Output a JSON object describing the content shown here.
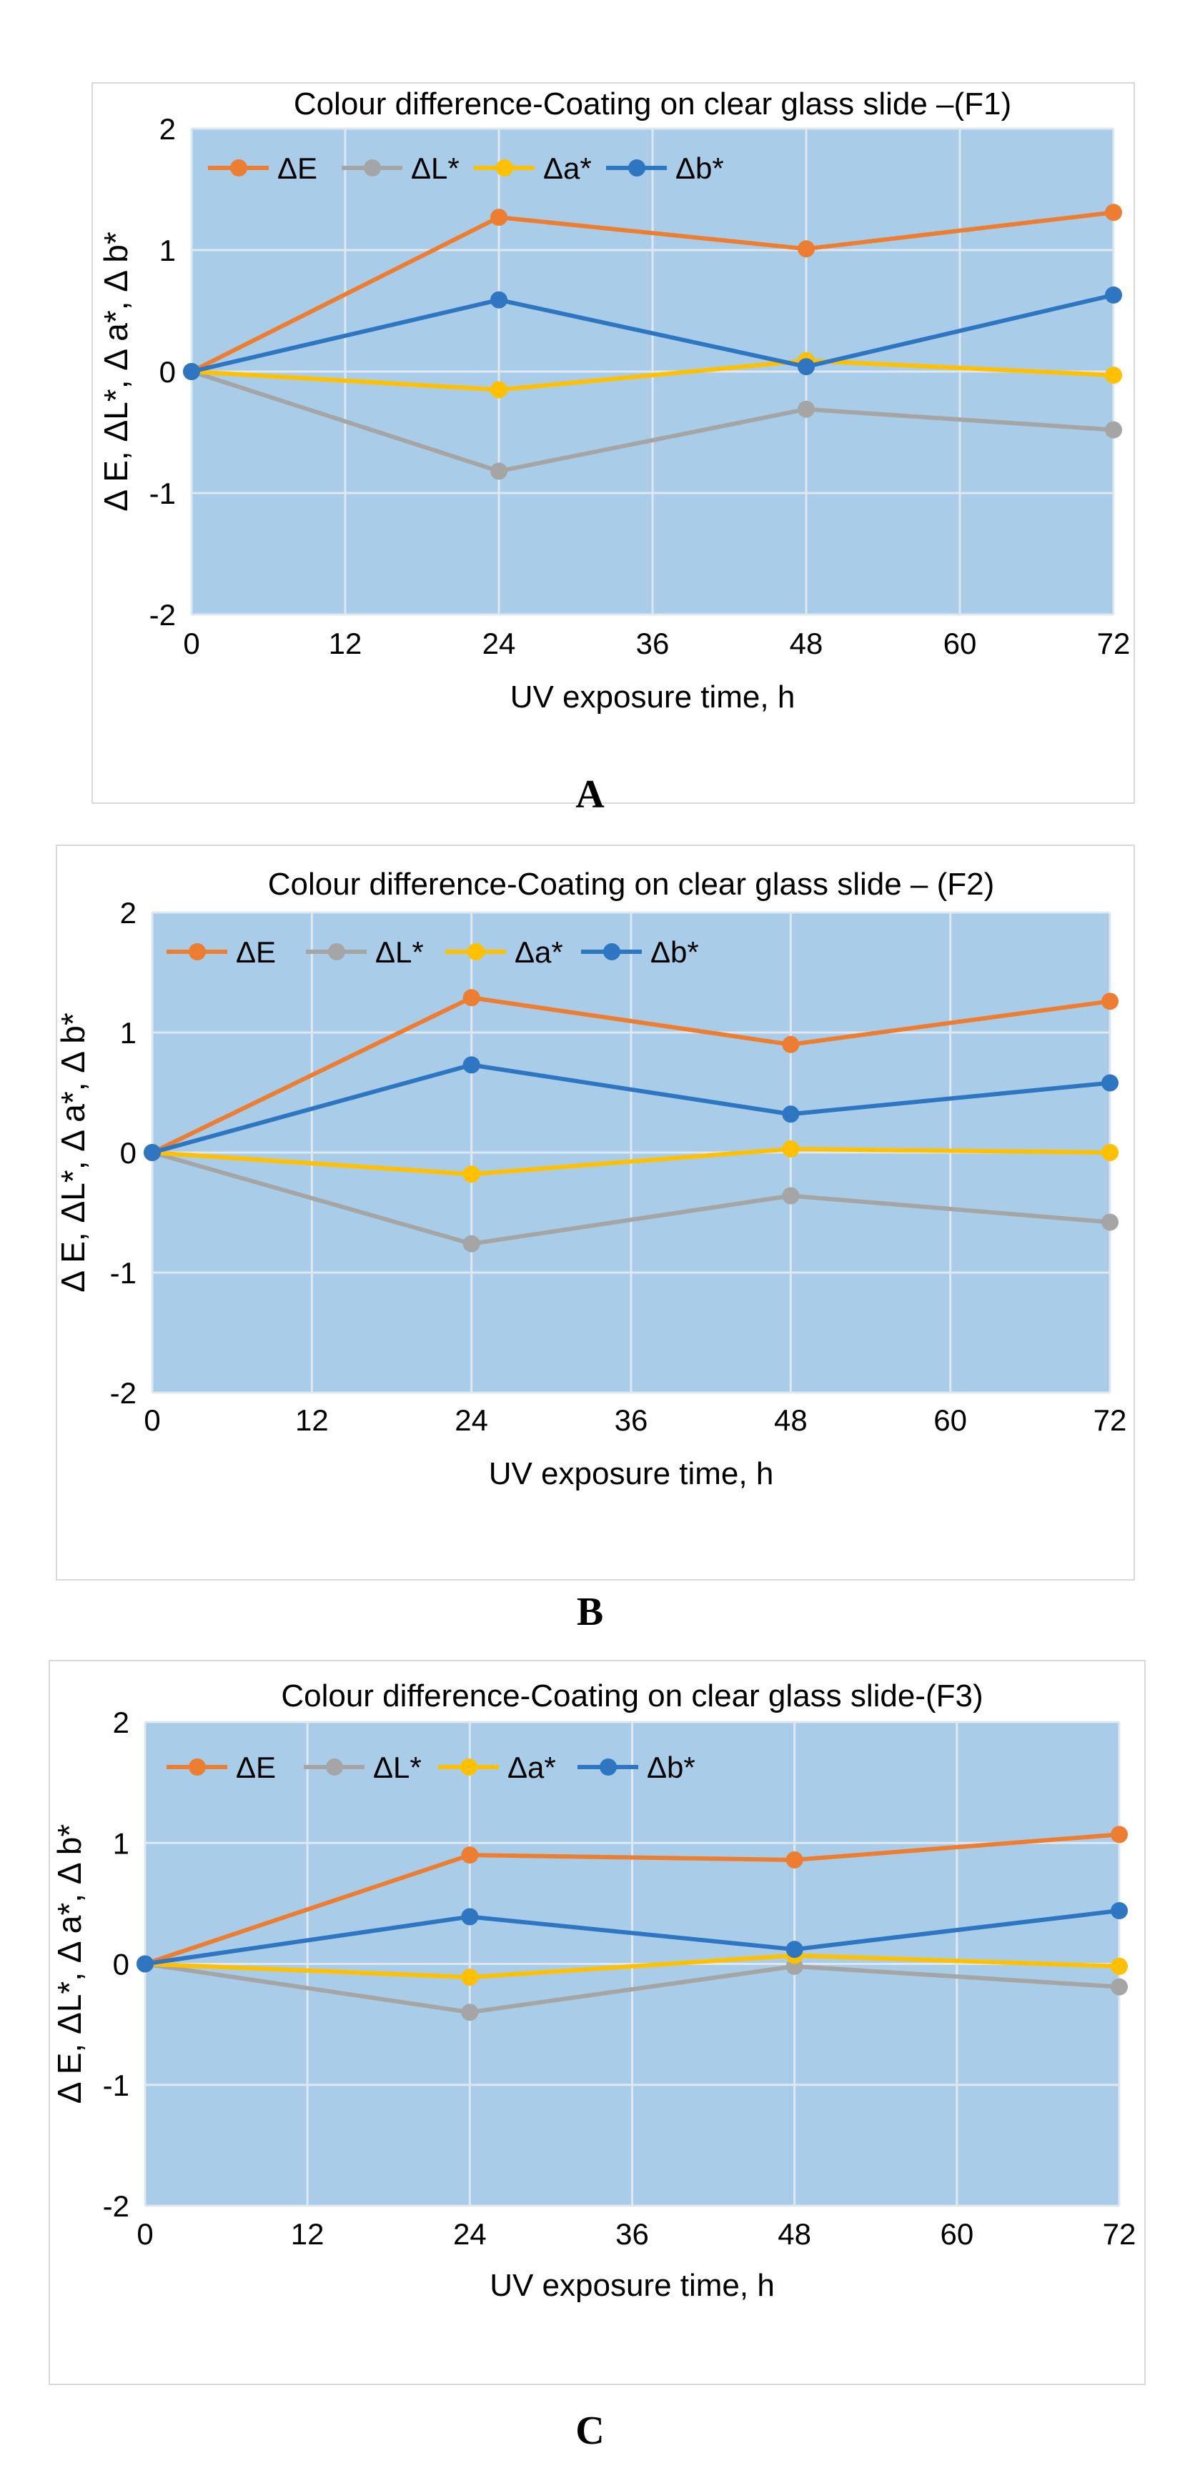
{
  "colors": {
    "plot_bg": "#a9cde8",
    "grid": "#dfe8ef",
    "axis_text": "#000000",
    "dE": "#ed7d31",
    "dL": "#a5a5a5",
    "da": "#ffc000",
    "db": "#2e75c2"
  },
  "chart_data": [
    {
      "type": "line",
      "panel_label": "A",
      "title": "Colour difference-Coating on clear glass slide –(F1)",
      "xlabel": "UV exposure time, h",
      "ylabel": "Δ E, ΔL*, Δ a*, Δ b*",
      "x": [
        0,
        24,
        48,
        72
      ],
      "xticks": [
        "0",
        "12",
        "24",
        "36",
        "48",
        "60",
        "72"
      ],
      "yticks": [
        "2",
        "1",
        "0",
        "-1",
        "-2"
      ],
      "xlim": [
        0,
        72
      ],
      "ylim": [
        -2,
        2
      ],
      "legend_position": "top-left",
      "series": [
        {
          "name": "ΔE",
          "values": [
            0,
            1.27,
            1.01,
            1.31
          ]
        },
        {
          "name": "ΔL*",
          "values": [
            0,
            -0.82,
            -0.31,
            -0.48
          ]
        },
        {
          "name": "Δa*",
          "values": [
            0,
            -0.15,
            0.09,
            -0.03
          ]
        },
        {
          "name": "Δb*",
          "values": [
            0,
            0.59,
            0.04,
            0.63
          ]
        }
      ]
    },
    {
      "type": "line",
      "panel_label": "B",
      "title": "Colour difference-Coating on clear glass slide – (F2)",
      "xlabel": "UV exposure time, h",
      "ylabel": "Δ E, ΔL*, Δ a*, Δ b*",
      "x": [
        0,
        24,
        48,
        72
      ],
      "xticks": [
        "0",
        "12",
        "24",
        "36",
        "48",
        "60",
        "72"
      ],
      "yticks": [
        "2",
        "1",
        "0",
        "-1",
        "-2"
      ],
      "xlim": [
        0,
        72
      ],
      "ylim": [
        -2,
        2
      ],
      "legend_position": "top-left",
      "series": [
        {
          "name": "ΔE",
          "values": [
            0,
            1.29,
            0.9,
            1.26
          ]
        },
        {
          "name": "ΔL*",
          "values": [
            0,
            -0.76,
            -0.36,
            -0.58
          ]
        },
        {
          "name": "Δa*",
          "values": [
            0,
            -0.18,
            0.03,
            0.0
          ]
        },
        {
          "name": "Δb*",
          "values": [
            0,
            0.73,
            0.32,
            0.58
          ]
        }
      ]
    },
    {
      "type": "line",
      "panel_label": "C",
      "title": "Colour difference-Coating on clear glass slide-(F3)",
      "xlabel": "UV exposure time, h",
      "ylabel": "Δ E, ΔL*, Δ a*, Δ b*",
      "x": [
        0,
        24,
        48,
        72
      ],
      "xticks": [
        "0",
        "12",
        "24",
        "36",
        "48",
        "60",
        "72"
      ],
      "yticks": [
        "2",
        "1",
        "0",
        "-1",
        "-2"
      ],
      "xlim": [
        0,
        72
      ],
      "ylim": [
        -2,
        2
      ],
      "legend_position": "top-left",
      "series": [
        {
          "name": "ΔE",
          "values": [
            0,
            0.9,
            0.86,
            1.07
          ]
        },
        {
          "name": "ΔL*",
          "values": [
            0,
            -0.4,
            -0.02,
            -0.19
          ]
        },
        {
          "name": "Δa*",
          "values": [
            0,
            -0.11,
            0.07,
            -0.02
          ]
        },
        {
          "name": "Δb*",
          "values": [
            0,
            0.39,
            0.12,
            0.44
          ]
        }
      ]
    }
  ]
}
